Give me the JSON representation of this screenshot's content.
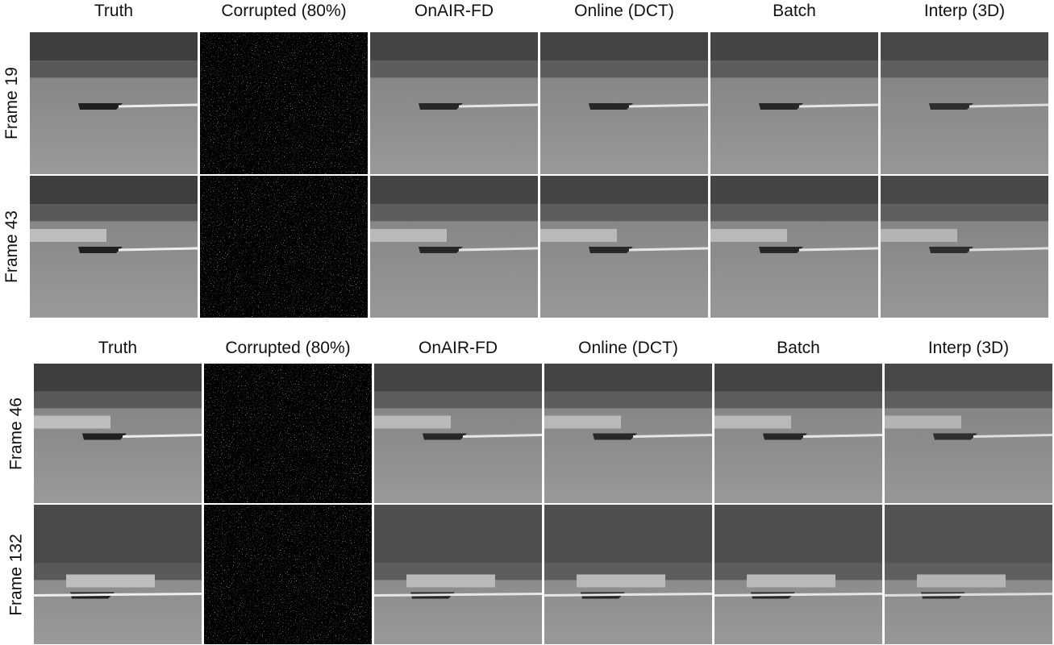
{
  "panels": [
    {
      "columns": [
        "Truth",
        "Corrupted (80%)",
        "OnAIR-FD",
        "Online (DCT)",
        "Batch",
        "Interp (3D)"
      ],
      "rows": [
        "Frame 19",
        "Frame 43"
      ]
    },
    {
      "columns": [
        "Truth",
        "Corrupted (80%)",
        "OnAIR-FD",
        "Online (DCT)",
        "Batch",
        "Interp (3D)"
      ],
      "rows": [
        "Frame 46",
        "Frame 132"
      ]
    }
  ]
}
